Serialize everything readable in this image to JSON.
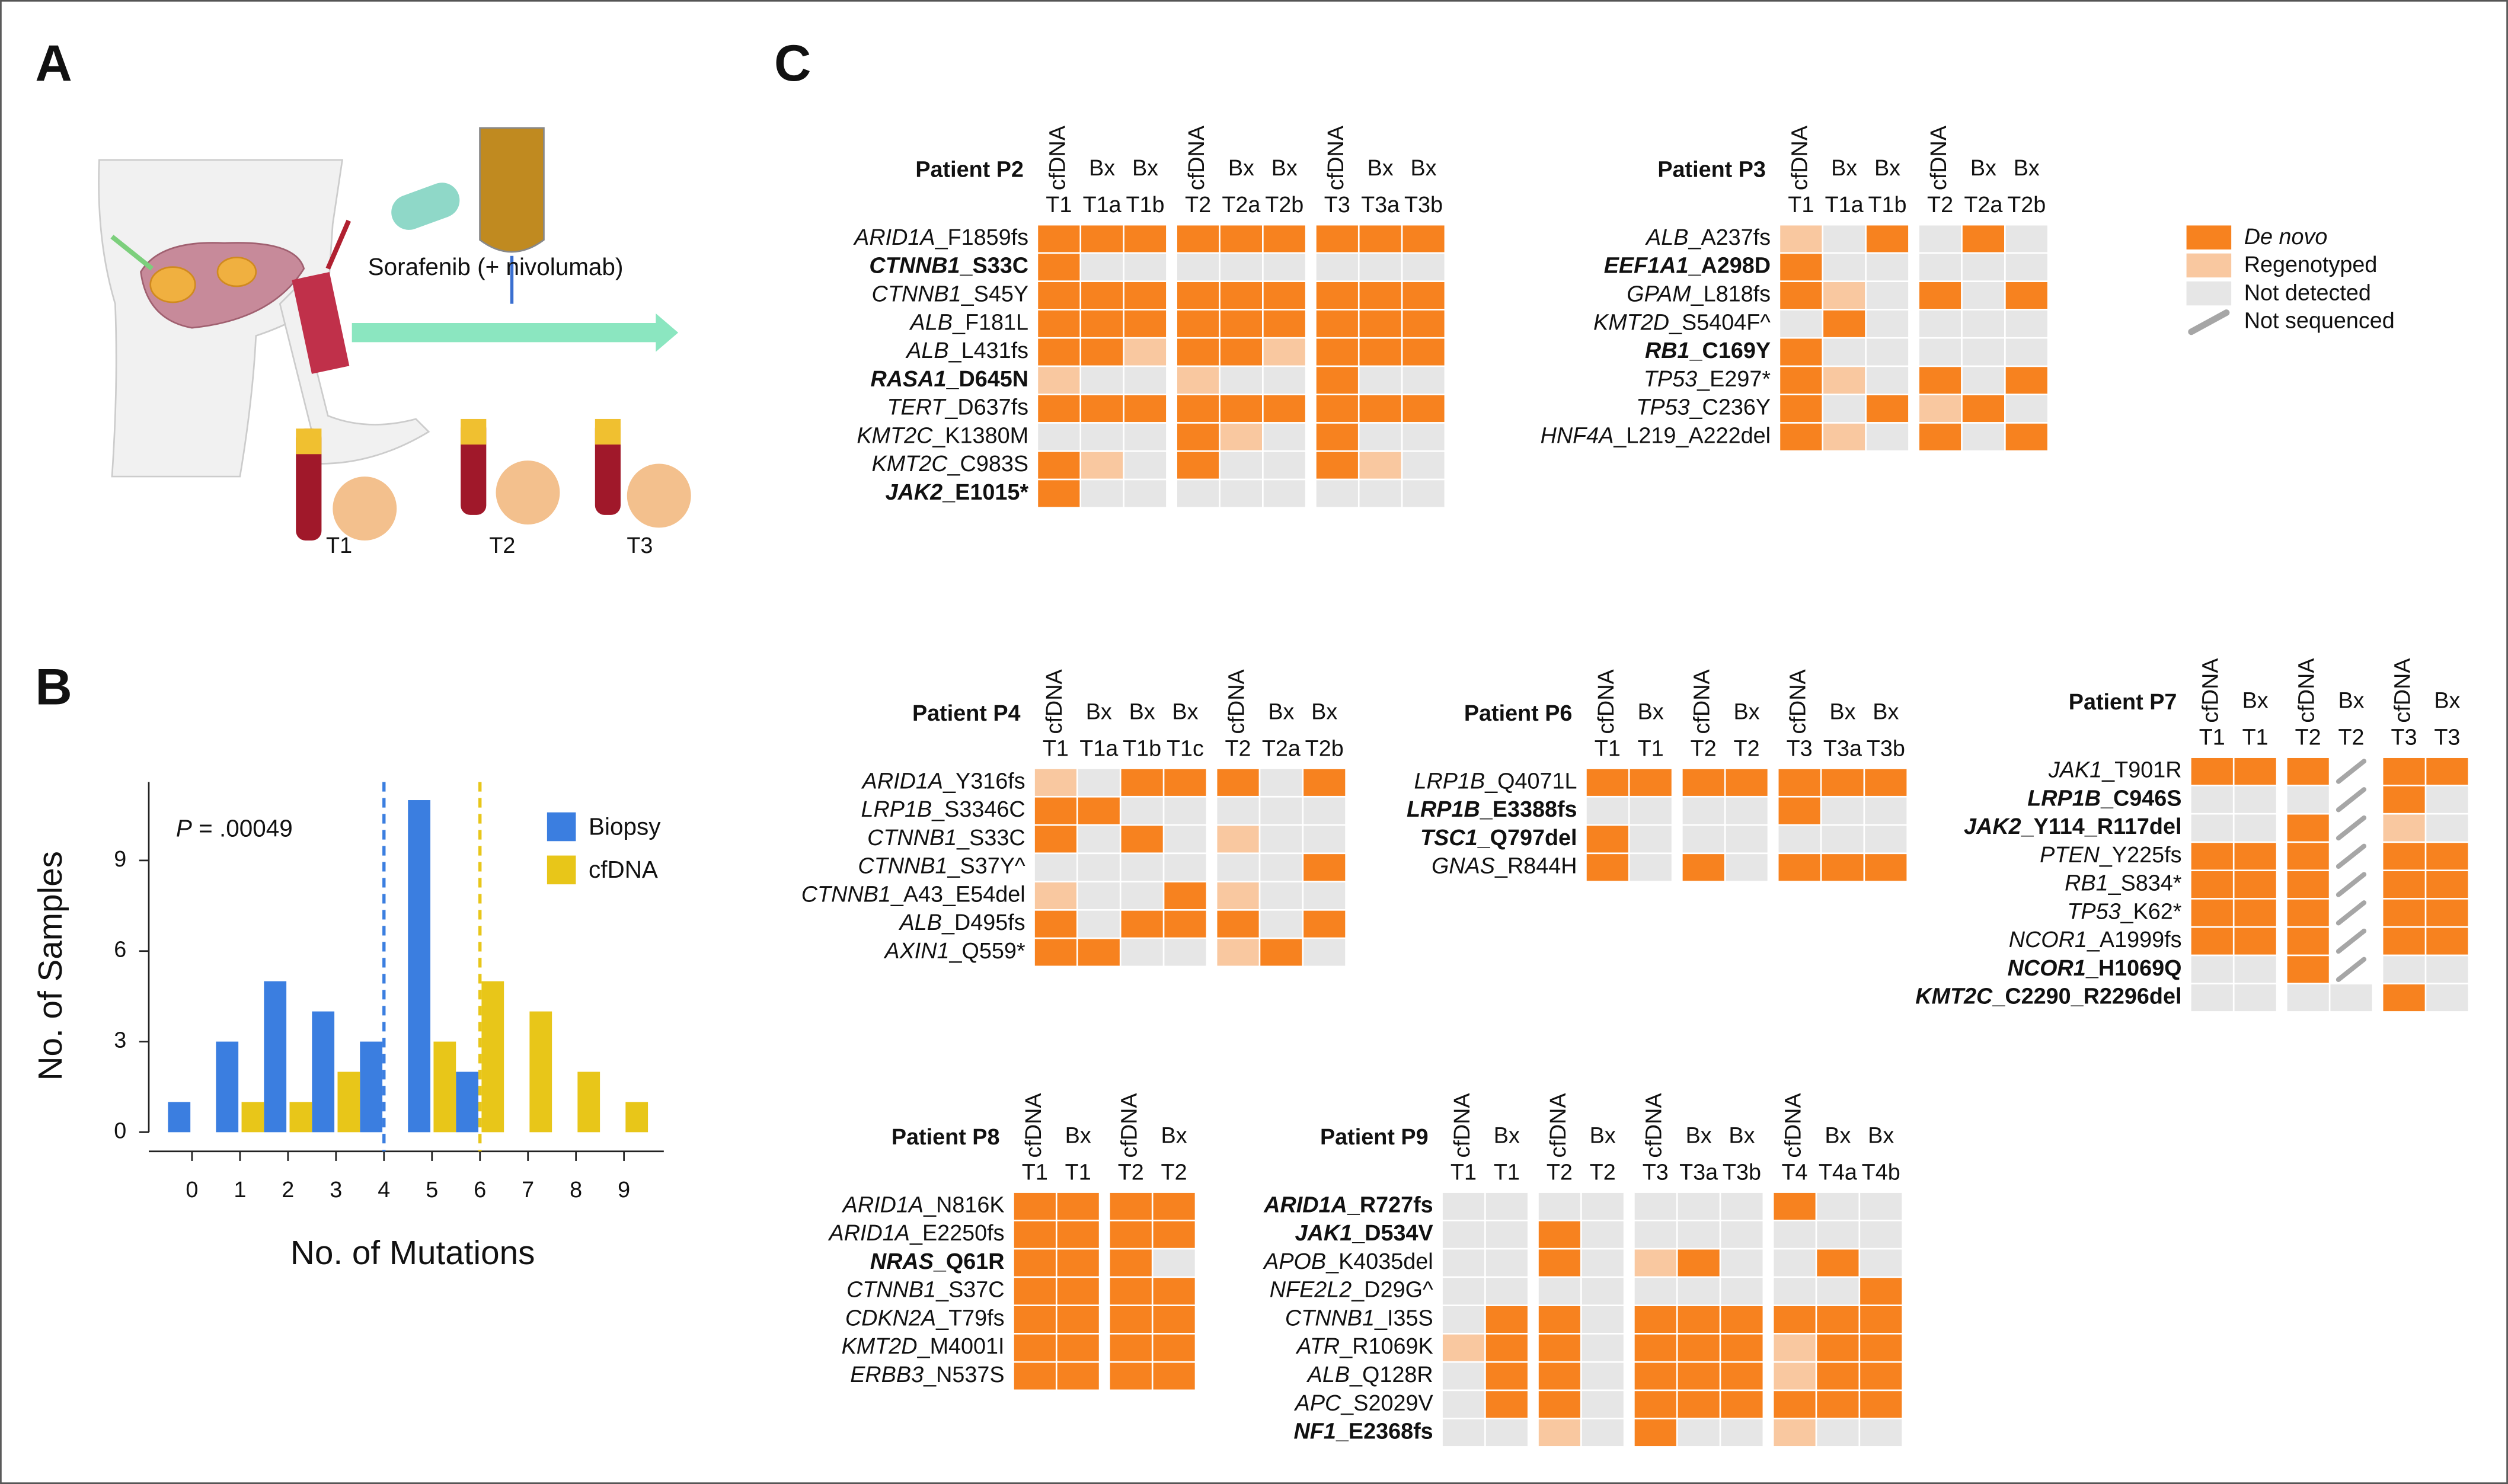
{
  "panel_labels": [
    "A",
    "B",
    "C"
  ],
  "panel_a": {
    "drug": "Sorafenib (+ nivolumab)",
    "timepoints": [
      "T1",
      "T2",
      "T3"
    ]
  },
  "heatmap_legend": [
    {
      "label": "De novo",
      "color": "#f7821f",
      "italic": true
    },
    {
      "label": "Regenotyped",
      "color": "#f9c8a0"
    },
    {
      "label": "Not detected",
      "color": "#e6e6e6"
    },
    {
      "label": "Not sequenced",
      "color": "#a6a6a6",
      "style": "slash"
    }
  ],
  "chart_data": [
    {
      "type": "bar",
      "xlabel": "No. of Mutations",
      "ylabel": "No. of Samples",
      "annotation": {
        "italic": "P",
        "text": " = .00049"
      },
      "categories": [
        0,
        1,
        2,
        3,
        4,
        5,
        6,
        7,
        8,
        9
      ],
      "series": [
        {
          "name": "Biopsy",
          "color": "#3b7ee0",
          "values": [
            1,
            3,
            5,
            4,
            3,
            11,
            2,
            0,
            0,
            0
          ]
        },
        {
          "name": "cfDNA",
          "color": "#e8c619",
          "values": [
            0,
            1,
            1,
            2,
            0,
            3,
            5,
            4,
            2,
            1
          ]
        }
      ],
      "medians": [
        {
          "value": 4,
          "color": "#3b7ee0"
        },
        {
          "value": 6,
          "color": "#e8c619"
        }
      ],
      "xlim": [
        -0.9,
        9.83
      ],
      "ylim": [
        0,
        11.6
      ],
      "yticks": [
        0,
        3,
        6,
        9
      ],
      "xticks": [
        0,
        1,
        2,
        3,
        4,
        5,
        6,
        7,
        8,
        9
      ],
      "grid": false
    },
    {
      "type": "heatmap",
      "title": "Patient P2",
      "groups": [
        [
          [
            "cfDNA",
            "T1"
          ],
          [
            "Bx",
            "T1a"
          ],
          [
            "Bx",
            "T1b"
          ]
        ],
        [
          [
            "cfDNA",
            "T2"
          ],
          [
            "Bx",
            "T2a"
          ],
          [
            "Bx",
            "T2b"
          ]
        ],
        [
          [
            "cfDNA",
            "T3"
          ],
          [
            "Bx",
            "T3a"
          ],
          [
            "Bx",
            "T3b"
          ]
        ]
      ],
      "rows": [
        {
          "gene": "ARID1A",
          "change": "_F1859fs"
        },
        {
          "gene": "CTNNB1",
          "change": "_S33C",
          "bold": true
        },
        {
          "gene": "CTNNB1",
          "change": "_S45Y"
        },
        {
          "gene": "ALB",
          "change": "_F181L"
        },
        {
          "gene": "ALB",
          "change": "_L431fs"
        },
        {
          "gene": "RASA1",
          "change": "_D645N",
          "bold": true
        },
        {
          "gene": "TERT",
          "change": "_D637fs"
        },
        {
          "gene": "KMT2C",
          "change": "_K1380M"
        },
        {
          "gene": "KMT2C",
          "change": "_C983S"
        },
        {
          "gene": "JAK2",
          "change": "_E1015*",
          "bold": true
        }
      ],
      "cells": [
        [
          0,
          0,
          0,
          0,
          0,
          0,
          0,
          0,
          0
        ],
        [
          0,
          2,
          2,
          2,
          2,
          2,
          2,
          2,
          2
        ],
        [
          0,
          0,
          0,
          0,
          0,
          0,
          0,
          0,
          0
        ],
        [
          0,
          0,
          0,
          0,
          0,
          0,
          0,
          0,
          0
        ],
        [
          0,
          0,
          1,
          0,
          0,
          1,
          0,
          0,
          0
        ],
        [
          1,
          2,
          2,
          1,
          2,
          2,
          0,
          2,
          2
        ],
        [
          0,
          0,
          0,
          0,
          0,
          0,
          0,
          0,
          0
        ],
        [
          2,
          2,
          2,
          0,
          1,
          2,
          0,
          2,
          2
        ],
        [
          0,
          1,
          2,
          0,
          2,
          2,
          0,
          1,
          2
        ],
        [
          0,
          2,
          2,
          2,
          2,
          2,
          2,
          2,
          2
        ]
      ]
    },
    {
      "type": "heatmap",
      "title": "Patient P3",
      "groups": [
        [
          [
            "cfDNA",
            "T1"
          ],
          [
            "Bx",
            "T1a"
          ],
          [
            "Bx",
            "T1b"
          ]
        ],
        [
          [
            "cfDNA",
            "T2"
          ],
          [
            "Bx",
            "T2a"
          ],
          [
            "Bx",
            "T2b"
          ]
        ]
      ],
      "rows": [
        {
          "gene": "ALB",
          "change": "_A237fs"
        },
        {
          "gene": "EEF1A1",
          "change": "_A298D",
          "bold": true
        },
        {
          "gene": "GPAM",
          "change": "_L818fs"
        },
        {
          "gene": "KMT2D",
          "change": "_S5404F^"
        },
        {
          "gene": "RB1",
          "change": "_C169Y",
          "bold": true
        },
        {
          "gene": "TP53",
          "change": "_E297*"
        },
        {
          "gene": "TP53",
          "change": "_C236Y"
        },
        {
          "gene": "HNF4A",
          "change": "_L219_A222del"
        }
      ],
      "cells": [
        [
          1,
          2,
          0,
          2,
          0,
          2
        ],
        [
          0,
          2,
          2,
          2,
          2,
          2
        ],
        [
          0,
          1,
          2,
          0,
          2,
          0
        ],
        [
          2,
          0,
          2,
          2,
          2,
          2
        ],
        [
          0,
          2,
          2,
          2,
          2,
          2
        ],
        [
          0,
          1,
          2,
          0,
          2,
          0
        ],
        [
          0,
          2,
          0,
          1,
          0,
          2
        ],
        [
          0,
          1,
          2,
          0,
          2,
          0
        ]
      ]
    },
    {
      "type": "heatmap",
      "title": "Patient P4",
      "groups": [
        [
          [
            "cfDNA",
            "T1"
          ],
          [
            "Bx",
            "T1a"
          ],
          [
            "Bx",
            "T1b"
          ],
          [
            "Bx",
            "T1c"
          ]
        ],
        [
          [
            "cfDNA",
            "T2"
          ],
          [
            "Bx",
            "T2a"
          ],
          [
            "Bx",
            "T2b"
          ]
        ]
      ],
      "rows": [
        {
          "gene": "ARID1A",
          "change": "_Y316fs"
        },
        {
          "gene": "LRP1B",
          "change": "_S3346C"
        },
        {
          "gene": "CTNNB1",
          "change": "_S33C"
        },
        {
          "gene": "CTNNB1",
          "change": "_S37Y^"
        },
        {
          "gene": "CTNNB1",
          "change": "_A43_E54del"
        },
        {
          "gene": "ALB",
          "change": "_D495fs"
        },
        {
          "gene": "AXIN1",
          "change": "_Q559*"
        }
      ],
      "cells": [
        [
          1,
          2,
          0,
          0,
          0,
          2,
          0
        ],
        [
          0,
          0,
          2,
          2,
          2,
          2,
          2
        ],
        [
          0,
          2,
          0,
          2,
          1,
          2,
          2
        ],
        [
          2,
          2,
          2,
          2,
          2,
          2,
          0
        ],
        [
          1,
          2,
          2,
          0,
          1,
          2,
          2
        ],
        [
          0,
          2,
          0,
          0,
          0,
          2,
          0
        ],
        [
          0,
          0,
          2,
          2,
          1,
          0,
          2
        ]
      ]
    },
    {
      "type": "heatmap",
      "title": "Patient P6",
      "groups": [
        [
          [
            "cfDNA",
            "T1"
          ],
          [
            "Bx",
            "T1"
          ]
        ],
        [
          [
            "cfDNA",
            "T2"
          ],
          [
            "Bx",
            "T2"
          ]
        ],
        [
          [
            "cfDNA",
            "T3"
          ],
          [
            "Bx",
            "T3a"
          ],
          [
            "Bx",
            "T3b"
          ]
        ]
      ],
      "rows": [
        {
          "gene": "LRP1B",
          "change": "_Q4071L"
        },
        {
          "gene": "LRP1B",
          "change": "_E3388fs",
          "bold": true
        },
        {
          "gene": "TSC1",
          "change": "_Q797del",
          "bold": true
        },
        {
          "gene": "GNAS",
          "change": "_R844H"
        }
      ],
      "cells": [
        [
          0,
          0,
          0,
          0,
          0,
          0,
          0
        ],
        [
          2,
          2,
          2,
          2,
          0,
          2,
          2
        ],
        [
          0,
          2,
          2,
          2,
          2,
          2,
          2
        ],
        [
          0,
          2,
          0,
          2,
          0,
          0,
          0
        ]
      ]
    },
    {
      "type": "heatmap",
      "title": "Patient P7",
      "groups": [
        [
          [
            "cfDNA",
            "T1"
          ],
          [
            "Bx",
            "T1"
          ]
        ],
        [
          [
            "cfDNA",
            "T2"
          ],
          [
            "Bx",
            "T2"
          ]
        ],
        [
          [
            "cfDNA",
            "T3"
          ],
          [
            "Bx",
            "T3"
          ]
        ]
      ],
      "rows": [
        {
          "gene": "JAK1",
          "change": "_T901R"
        },
        {
          "gene": "LRP1B",
          "change": "_C946S",
          "bold": true
        },
        {
          "gene": "JAK2",
          "change": "_Y114_R117del",
          "bold": true
        },
        {
          "gene": "PTEN",
          "change": "_Y225fs"
        },
        {
          "gene": "RB1",
          "change": "_S834*"
        },
        {
          "gene": "TP53",
          "change": "_K62*"
        },
        {
          "gene": "NCOR1",
          "change": "_A1999fs"
        },
        {
          "gene": "NCOR1",
          "change": "_H1069Q",
          "bold": true
        },
        {
          "gene": "KMT2C",
          "change": "_C2290_R2296del",
          "bold": true
        }
      ],
      "cells": [
        [
          0,
          0,
          0,
          3,
          0,
          0
        ],
        [
          2,
          2,
          2,
          3,
          0,
          2
        ],
        [
          2,
          2,
          0,
          3,
          1,
          2
        ],
        [
          0,
          0,
          0,
          3,
          0,
          0
        ],
        [
          0,
          0,
          0,
          3,
          0,
          0
        ],
        [
          0,
          0,
          0,
          3,
          0,
          0
        ],
        [
          0,
          0,
          0,
          3,
          0,
          0
        ],
        [
          2,
          2,
          0,
          3,
          2,
          2
        ],
        [
          2,
          2,
          2,
          2,
          0,
          2
        ]
      ]
    },
    {
      "type": "heatmap",
      "title": "Patient P8",
      "groups": [
        [
          [
            "cfDNA",
            "T1"
          ],
          [
            "Bx",
            "T1"
          ]
        ],
        [
          [
            "cfDNA",
            "T2"
          ],
          [
            "Bx",
            "T2"
          ]
        ]
      ],
      "rows": [
        {
          "gene": "ARID1A",
          "change": "_N816K"
        },
        {
          "gene": "ARID1A",
          "change": "_E2250fs"
        },
        {
          "gene": "NRAS",
          "change": "_Q61R",
          "bold": true
        },
        {
          "gene": "CTNNB1",
          "change": "_S37C"
        },
        {
          "gene": "CDKN2A",
          "change": "_T79fs"
        },
        {
          "gene": "KMT2D",
          "change": "_M4001I"
        },
        {
          "gene": "ERBB3",
          "change": "_N537S"
        }
      ],
      "cells": [
        [
          0,
          0,
          0,
          0
        ],
        [
          0,
          0,
          0,
          0
        ],
        [
          0,
          0,
          0,
          2
        ],
        [
          0,
          0,
          0,
          0
        ],
        [
          0,
          0,
          0,
          0
        ],
        [
          0,
          0,
          0,
          0
        ],
        [
          0,
          0,
          0,
          0
        ]
      ]
    },
    {
      "type": "heatmap",
      "title": "Patient P9",
      "groups": [
        [
          [
            "cfDNA",
            "T1"
          ],
          [
            "Bx",
            "T1"
          ]
        ],
        [
          [
            "cfDNA",
            "T2"
          ],
          [
            "Bx",
            "T2"
          ]
        ],
        [
          [
            "cfDNA",
            "T3"
          ],
          [
            "Bx",
            "T3a"
          ],
          [
            "Bx",
            "T3b"
          ]
        ],
        [
          [
            "cfDNA",
            "T4"
          ],
          [
            "Bx",
            "T4a"
          ],
          [
            "Bx",
            "T4b"
          ]
        ]
      ],
      "rows": [
        {
          "gene": "ARID1A",
          "change": "_R727fs",
          "bold": true
        },
        {
          "gene": "JAK1",
          "change": "_D534V",
          "bold": true
        },
        {
          "gene": "APOB",
          "change": "_K4035del"
        },
        {
          "gene": "NFE2L2",
          "change": "_D29G^"
        },
        {
          "gene": "CTNNB1",
          "change": "_I35S"
        },
        {
          "gene": "ATR",
          "change": "_R1069K"
        },
        {
          "gene": "ALB",
          "change": "_Q128R"
        },
        {
          "gene": "APC",
          "change": "_S2029V"
        },
        {
          "gene": "NF1",
          "change": "_E2368fs",
          "bold": true
        }
      ],
      "cells": [
        [
          2,
          2,
          2,
          2,
          2,
          2,
          2,
          0,
          2,
          2
        ],
        [
          2,
          2,
          0,
          2,
          2,
          2,
          2,
          2,
          2,
          2
        ],
        [
          2,
          2,
          0,
          2,
          1,
          0,
          2,
          2,
          0,
          2
        ],
        [
          2,
          2,
          2,
          2,
          2,
          2,
          2,
          2,
          2,
          0
        ],
        [
          2,
          0,
          0,
          2,
          0,
          0,
          0,
          0,
          0,
          0
        ],
        [
          1,
          0,
          0,
          2,
          0,
          0,
          0,
          1,
          0,
          0
        ],
        [
          2,
          0,
          0,
          2,
          0,
          0,
          0,
          1,
          0,
          0
        ],
        [
          2,
          0,
          0,
          2,
          0,
          0,
          0,
          0,
          0,
          0
        ],
        [
          2,
          2,
          1,
          2,
          0,
          2,
          2,
          1,
          2,
          2
        ]
      ]
    }
  ]
}
